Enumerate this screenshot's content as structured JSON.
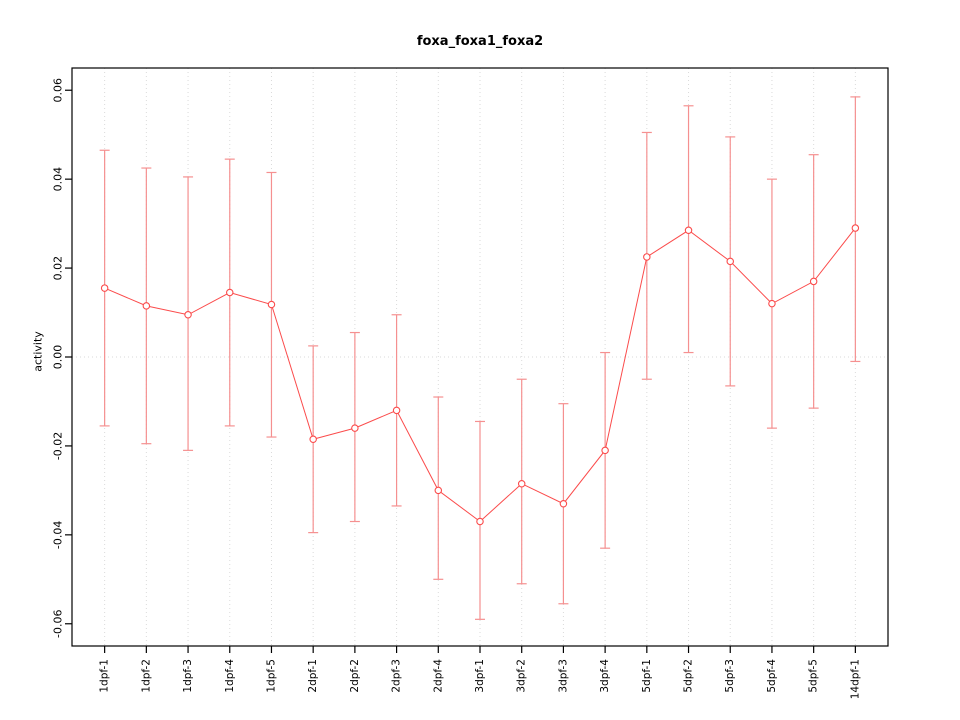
{
  "chart_data": {
    "type": "line",
    "title": "foxa_foxa1_foxa2",
    "xlabel": "",
    "ylabel": "activity",
    "categories": [
      "1dpf-1",
      "1dpf-2",
      "1dpf-3",
      "1dpf-4",
      "1dpf-5",
      "2dpf-1",
      "2dpf-2",
      "2dpf-3",
      "2dpf-4",
      "3dpf-1",
      "3dpf-2",
      "3dpf-3",
      "3dpf-4",
      "5dpf-1",
      "5dpf-2",
      "5dpf-3",
      "5dpf-4",
      "5dpf-5",
      "14dpf-1"
    ],
    "series": [
      {
        "name": "activity",
        "values": [
          0.0155,
          0.0115,
          0.0095,
          0.0145,
          0.0118,
          -0.0185,
          -0.016,
          -0.012,
          -0.03,
          -0.037,
          -0.0285,
          -0.033,
          -0.021,
          0.0225,
          0.0285,
          0.0215,
          0.012,
          0.017,
          0.029
        ],
        "error_low": [
          -0.0155,
          -0.0195,
          -0.021,
          -0.0155,
          -0.018,
          -0.0395,
          -0.037,
          -0.0335,
          -0.05,
          -0.059,
          -0.051,
          -0.0555,
          -0.043,
          -0.005,
          0.001,
          -0.0065,
          -0.016,
          -0.0115,
          -0.001
        ],
        "error_high": [
          0.0465,
          0.0425,
          0.0405,
          0.0445,
          0.0415,
          0.0025,
          0.0055,
          0.0095,
          -0.009,
          -0.0145,
          -0.005,
          -0.0105,
          0.001,
          0.0505,
          0.0565,
          0.0495,
          0.04,
          0.0455,
          0.0585
        ]
      }
    ],
    "yticks": [
      -0.06,
      -0.04,
      -0.02,
      0.0,
      0.02,
      0.04,
      0.06
    ],
    "ylim": [
      -0.065,
      0.065
    ],
    "grid": "vertical dotted at each category, horizontal dotted at zero",
    "legend": "none",
    "colors": {
      "line": "#fb4b4b",
      "point": "#fb4b4b",
      "error_bar": "#f59090",
      "grid": "#dadada",
      "axis": "#000000",
      "background": "#ffffff"
    }
  }
}
